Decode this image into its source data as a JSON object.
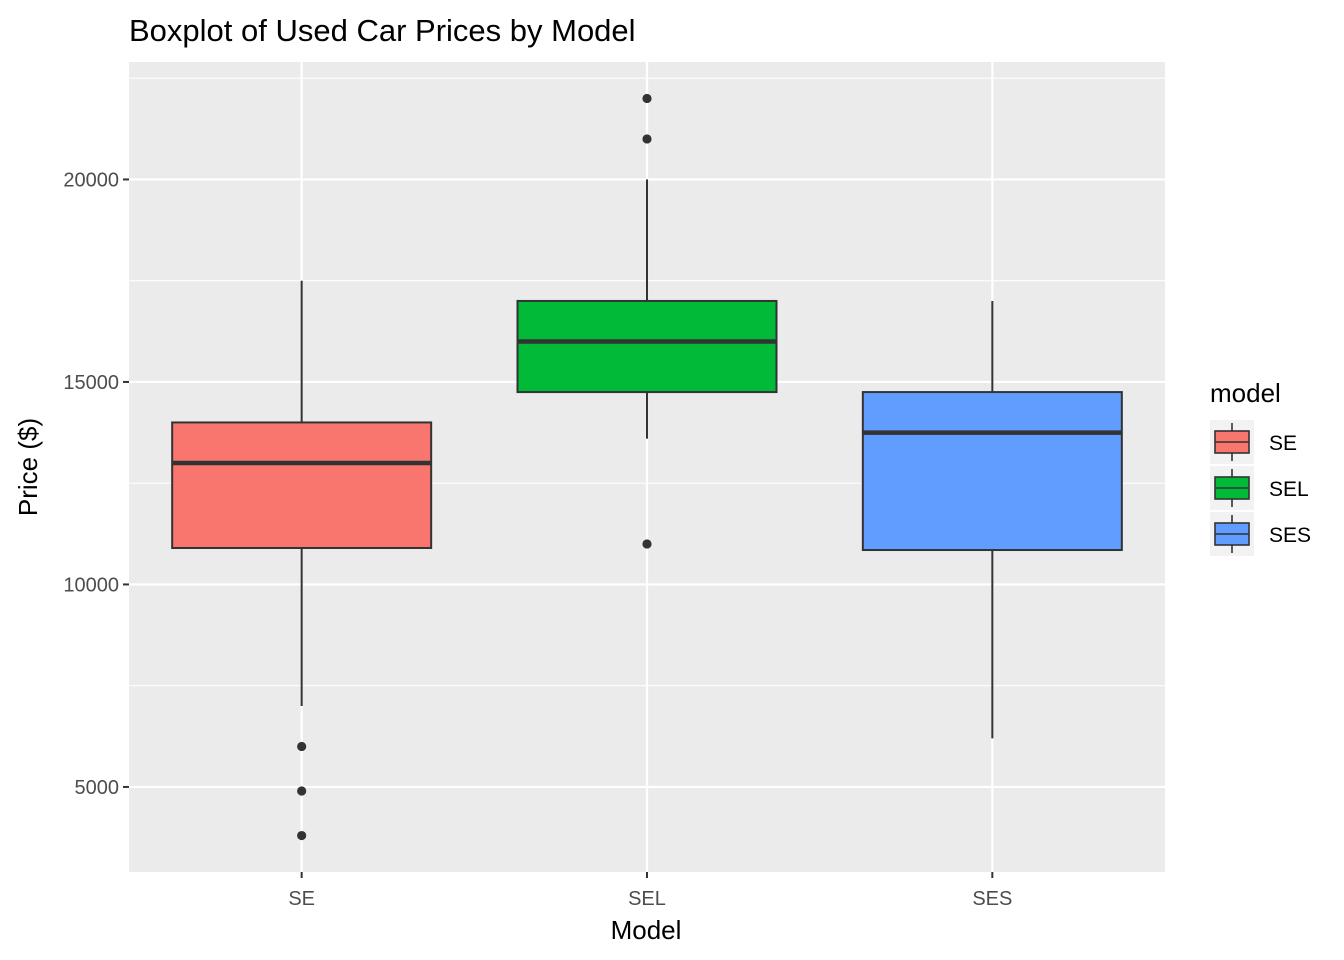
{
  "chart_data": {
    "type": "boxplot",
    "title": "Boxplot of Used Car Prices by Model",
    "xlabel": "Model",
    "ylabel": "Price ($)",
    "ylim": [
      2900,
      22900
    ],
    "y_ticks": [
      5000,
      10000,
      15000,
      20000
    ],
    "y_minor_ticks": [
      7500,
      12500,
      17500,
      22500
    ],
    "categories": [
      "SE",
      "SEL",
      "SES"
    ],
    "grid": true,
    "legend": {
      "title": "model",
      "position": "right",
      "entries": [
        {
          "label": "SE",
          "color": "#F8766D"
        },
        {
          "label": "SEL",
          "color": "#00BA38"
        },
        {
          "label": "SES",
          "color": "#619CFF"
        }
      ]
    },
    "series": [
      {
        "category": "SE",
        "color": "#F8766D",
        "whisker_low": 7000,
        "q1": 10900,
        "median": 13000,
        "q3": 14000,
        "whisker_high": 17500,
        "outliers": [
          6000,
          4900,
          3800
        ]
      },
      {
        "category": "SEL",
        "color": "#00BA38",
        "whisker_low": 13600,
        "q1": 14750,
        "median": 16000,
        "q3": 17000,
        "whisker_high": 20000,
        "outliers": [
          22000,
          21000,
          11000
        ]
      },
      {
        "category": "SES",
        "color": "#619CFF",
        "whisker_low": 6200,
        "q1": 10850,
        "median": 13750,
        "q3": 14750,
        "whisker_high": 17000,
        "outliers": []
      }
    ]
  }
}
